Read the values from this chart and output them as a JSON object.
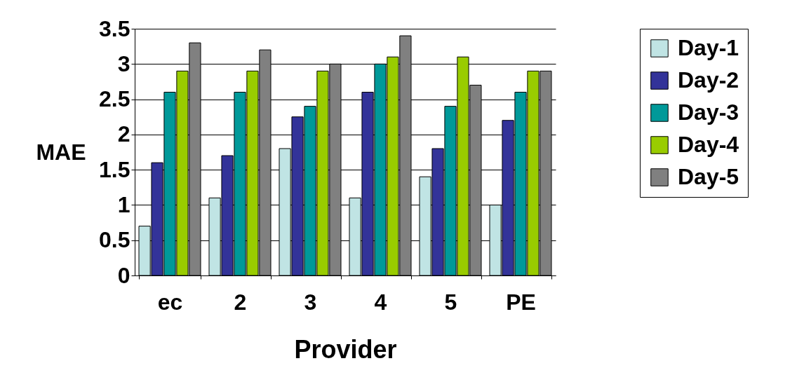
{
  "chart_data": {
    "type": "bar",
    "xlabel": "Provider",
    "ylabel": "MAE",
    "categories": [
      "ec",
      "2",
      "3",
      "4",
      "5",
      "PE"
    ],
    "series": [
      {
        "name": "Day-1",
        "color": "#c0e4e4",
        "values": [
          0.7,
          1.1,
          1.8,
          1.1,
          1.4,
          1.0
        ]
      },
      {
        "name": "Day-2",
        "color": "#333399",
        "values": [
          1.6,
          1.7,
          2.25,
          2.6,
          1.8,
          2.2
        ]
      },
      {
        "name": "Day-3",
        "color": "#009999",
        "values": [
          2.6,
          2.6,
          2.4,
          3.0,
          2.4,
          2.6
        ]
      },
      {
        "name": "Day-4",
        "color": "#99cc00",
        "values": [
          2.9,
          2.9,
          2.9,
          3.1,
          3.1,
          2.9
        ]
      },
      {
        "name": "Day-5",
        "color": "#808080",
        "values": [
          3.3,
          3.2,
          3.0,
          3.4,
          2.7,
          2.9
        ]
      }
    ],
    "ylim": [
      0,
      3.5
    ],
    "yticks": [
      0,
      0.5,
      1,
      1.5,
      2,
      2.5,
      3,
      3.5
    ],
    "grid": "y",
    "legend": "right"
  }
}
